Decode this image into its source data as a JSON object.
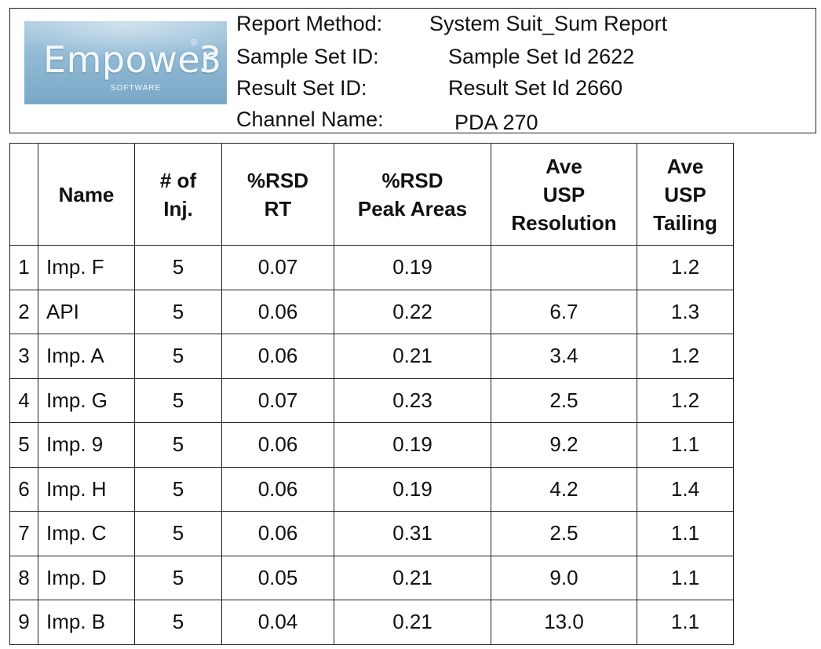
{
  "header": {
    "logo": {
      "word": "Empower",
      "number": "3",
      "registered": "®",
      "subtitle": "SOFTWARE"
    },
    "fields": [
      {
        "label": "Report Method:",
        "value": "System Suit_Sum Report"
      },
      {
        "label": "Sample Set ID:",
        "value": "Sample Set Id 2622"
      },
      {
        "label": "Result Set ID:",
        "value": "Result Set Id 2660"
      },
      {
        "label": "Channel Name:",
        "value": "PDA 270"
      }
    ]
  },
  "table": {
    "columns": [
      {
        "key": "index",
        "label": ""
      },
      {
        "key": "name",
        "label": "Name"
      },
      {
        "key": "inj",
        "label": "# of\nInj."
      },
      {
        "key": "rsd_rt",
        "label": "%RSD\nRT"
      },
      {
        "key": "rsd_area",
        "label": "%RSD\nPeak Areas"
      },
      {
        "key": "resolution",
        "label": "Ave\nUSP\nResolution"
      },
      {
        "key": "tailing",
        "label": "Ave\nUSP\nTailing"
      }
    ],
    "rows": [
      {
        "index": "1",
        "name": "Imp. F",
        "inj": "5",
        "rsd_rt": "0.07",
        "rsd_area": "0.19",
        "resolution": "",
        "tailing": "1.2"
      },
      {
        "index": "2",
        "name": "API",
        "inj": "5",
        "rsd_rt": "0.06",
        "rsd_area": "0.22",
        "resolution": "6.7",
        "tailing": "1.3"
      },
      {
        "index": "3",
        "name": "Imp. A",
        "inj": "5",
        "rsd_rt": "0.06",
        "rsd_area": "0.21",
        "resolution": "3.4",
        "tailing": "1.2"
      },
      {
        "index": "4",
        "name": "Imp. G",
        "inj": "5",
        "rsd_rt": "0.07",
        "rsd_area": "0.23",
        "resolution": "2.5",
        "tailing": "1.2"
      },
      {
        "index": "5",
        "name": "Imp. 9",
        "inj": "5",
        "rsd_rt": "0.06",
        "rsd_area": "0.19",
        "resolution": "9.2",
        "tailing": "1.1"
      },
      {
        "index": "6",
        "name": "Imp. H",
        "inj": "5",
        "rsd_rt": "0.06",
        "rsd_area": "0.19",
        "resolution": "4.2",
        "tailing": "1.4"
      },
      {
        "index": "7",
        "name": "Imp. C",
        "inj": "5",
        "rsd_rt": "0.06",
        "rsd_area": "0.31",
        "resolution": "2.5",
        "tailing": "1.1"
      },
      {
        "index": "8",
        "name": "Imp. D",
        "inj": "5",
        "rsd_rt": "0.05",
        "rsd_area": "0.21",
        "resolution": "9.0",
        "tailing": "1.1"
      },
      {
        "index": "9",
        "name": "Imp. B",
        "inj": "5",
        "rsd_rt": "0.04",
        "rsd_area": "0.21",
        "resolution": "13.0",
        "tailing": "1.1"
      }
    ]
  }
}
